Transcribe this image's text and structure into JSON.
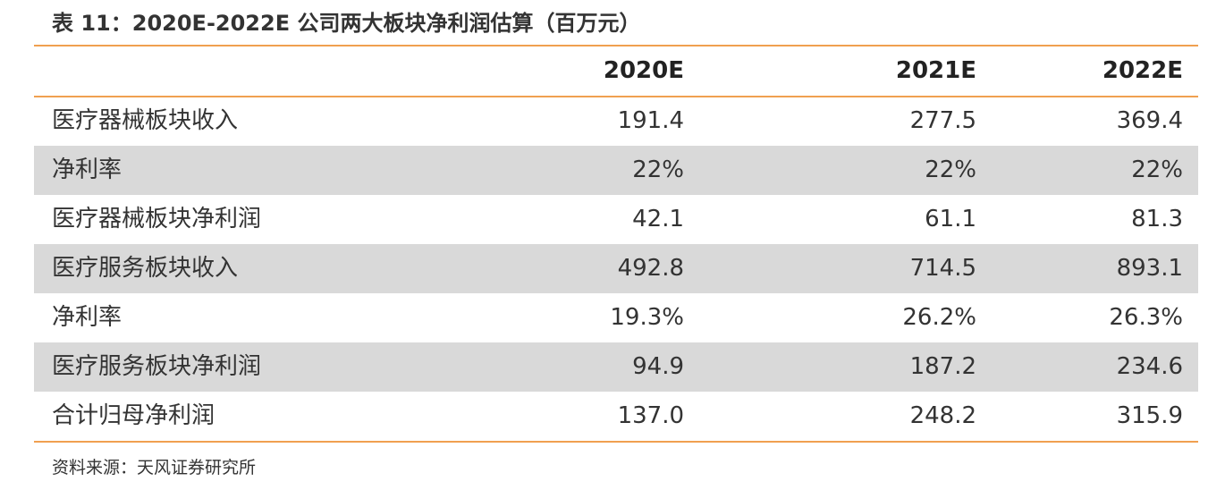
{
  "header": {
    "title": "表 11：2020E-2022E 公司两大板块净利润估算（百万元）"
  },
  "table": {
    "columns": [
      "2020E",
      "2021E",
      "2022E"
    ],
    "rows": [
      {
        "label": "医疗器械板块收入",
        "values": [
          "191.4",
          "277.5",
          "369.4"
        ]
      },
      {
        "label": "净利率",
        "values": [
          "22%",
          "22%",
          "22%"
        ]
      },
      {
        "label": "医疗器械板块净利润",
        "values": [
          "42.1",
          "61.1",
          "81.3"
        ]
      },
      {
        "label": "医疗服务板块收入",
        "values": [
          "492.8",
          "714.5",
          "893.1"
        ]
      },
      {
        "label": "净利率",
        "values": [
          "19.3%",
          "26.2%",
          "26.3%"
        ]
      },
      {
        "label": "医疗服务板块净利润",
        "values": [
          "94.9",
          "187.2",
          "234.6"
        ]
      },
      {
        "label": "合计归母净利润",
        "values": [
          "137.0",
          "248.2",
          "315.9"
        ]
      }
    ]
  },
  "footer": {
    "source": "资料来源：天风证券研究所"
  }
}
